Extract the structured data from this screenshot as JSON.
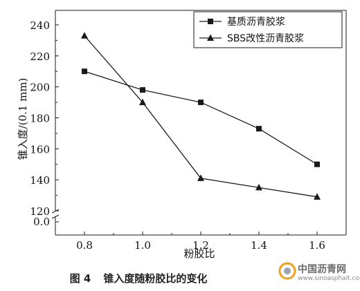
{
  "chart_data": {
    "type": "line",
    "title": "",
    "xlabel": "粉胶比",
    "ylabel": "锥入度/(0.1 mm)",
    "x": [
      0.8,
      1.0,
      1.2,
      1.4,
      1.6
    ],
    "x_ticks": [
      "0.8",
      "1.0",
      "1.2",
      "1.4",
      "1.6"
    ],
    "y_ticks": [
      "120",
      "140",
      "160",
      "180",
      "200",
      "220",
      "240"
    ],
    "y_break_label": "0.0",
    "xlim": [
      0.7,
      1.7
    ],
    "ylim": [
      120,
      250
    ],
    "axis_break": true,
    "legend_position": "top-right",
    "series": [
      {
        "name": "基质沥青胶浆",
        "marker": "square",
        "values": [
          210,
          198,
          190,
          173,
          150
        ]
      },
      {
        "name": "SBS改性沥青胶浆",
        "marker": "triangle",
        "values": [
          233,
          190,
          141,
          135,
          129
        ]
      }
    ],
    "colors": {
      "line": "#1a1a1a"
    }
  },
  "caption": {
    "number": "图 4",
    "text": "锥入度随粉胶比的变化"
  },
  "watermark": {
    "name": "中国沥青网",
    "url": "www.sinoasphalt.com"
  }
}
